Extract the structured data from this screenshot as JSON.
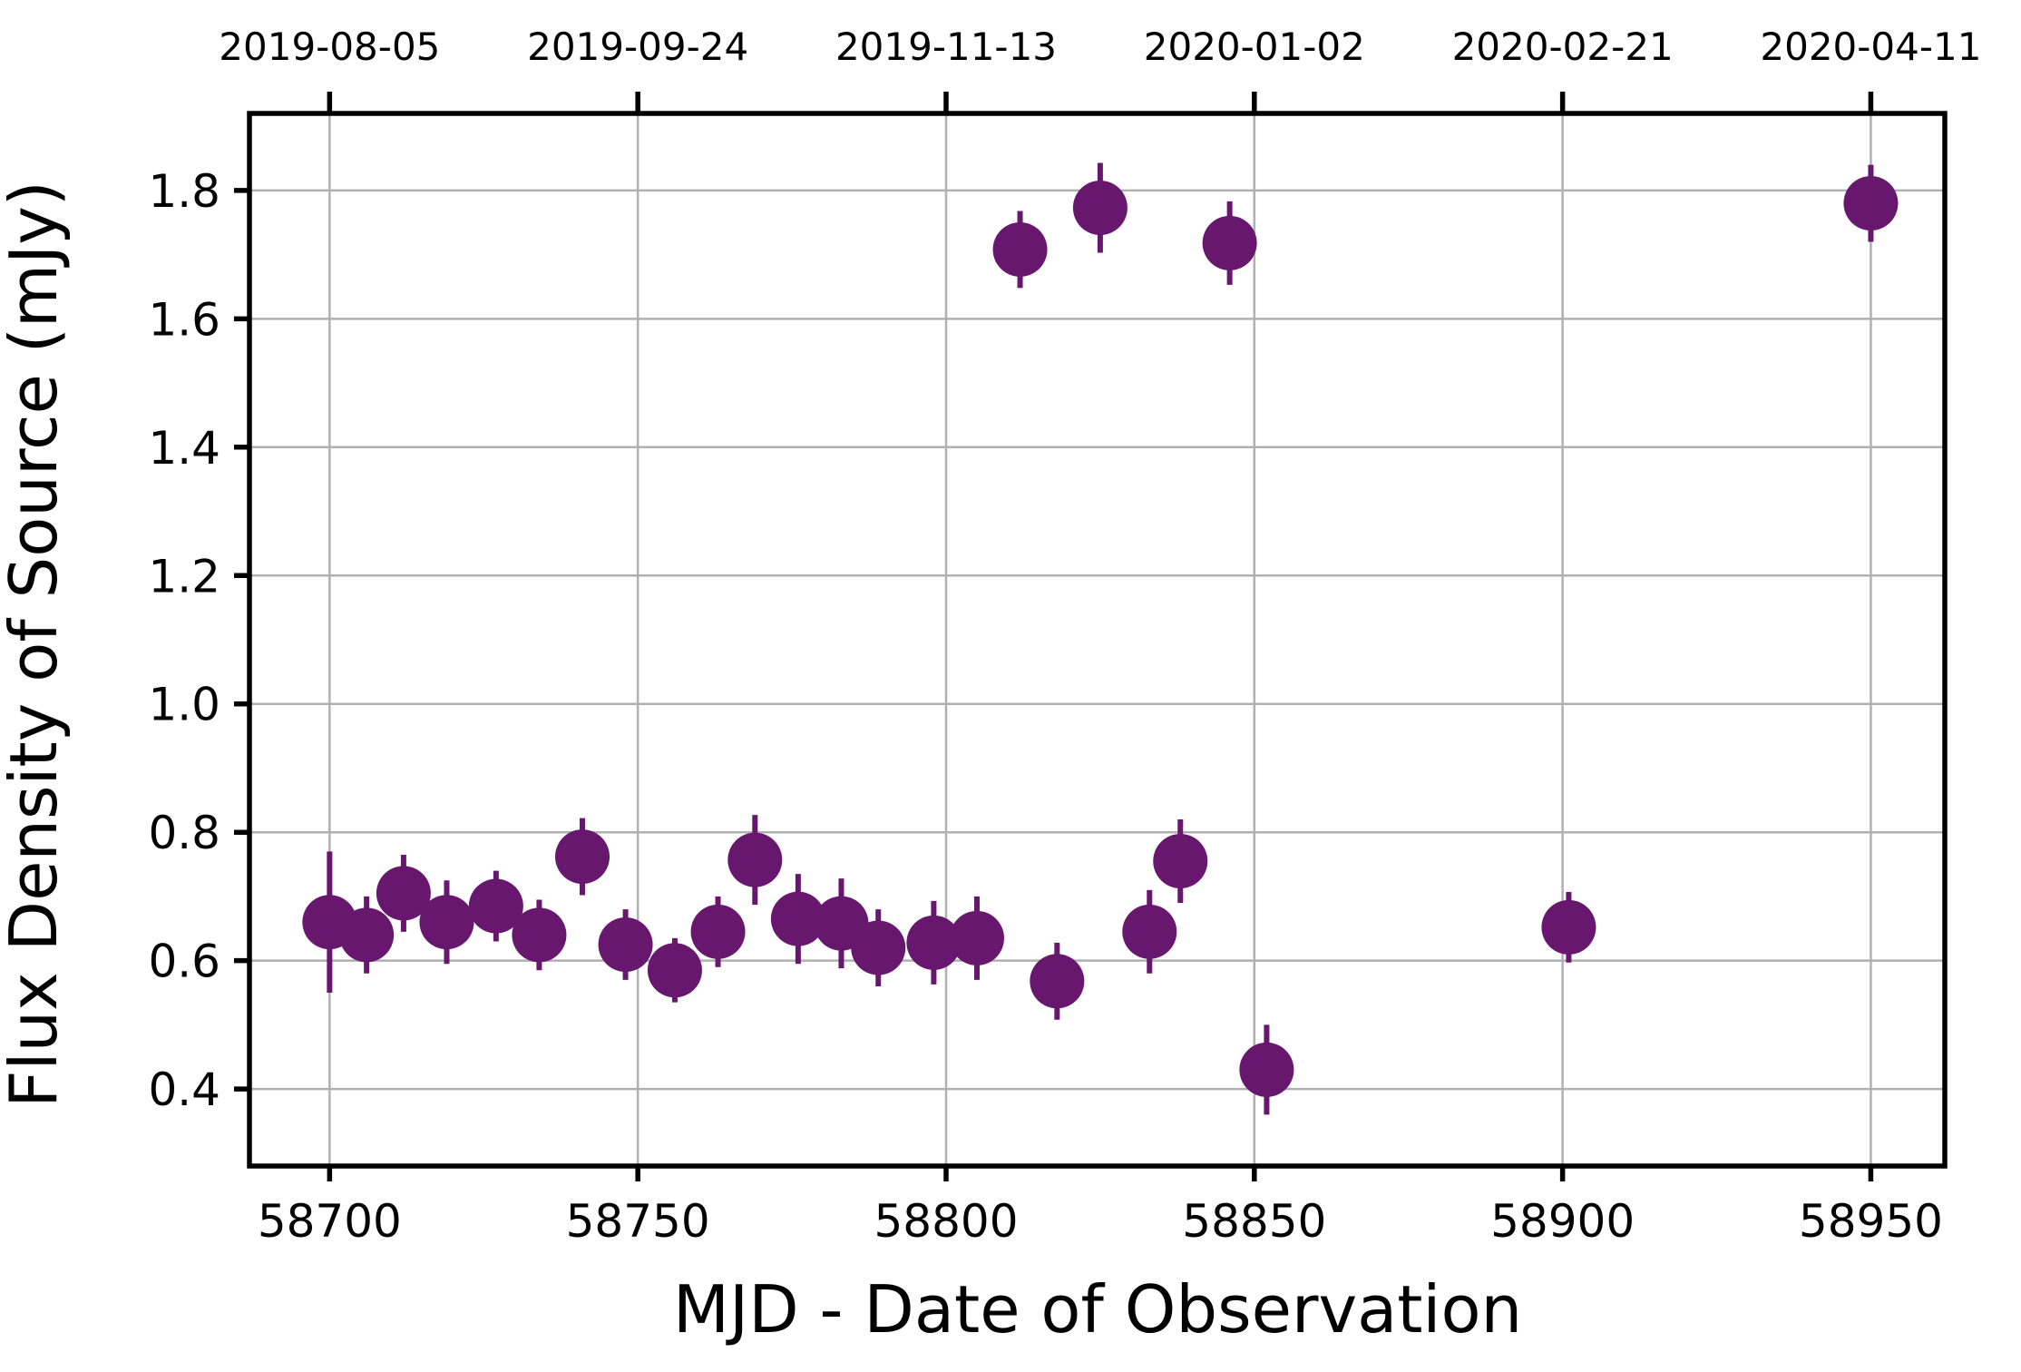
{
  "chart_data": {
    "type": "scatter",
    "title": "",
    "xlabel": "MJD - Date of Observation",
    "ylabel": "Flux Density of Source (mJy)",
    "xlim": [
      58687,
      58962
    ],
    "ylim": [
      0.28,
      1.92
    ],
    "x_ticks": [
      58700,
      58750,
      58800,
      58850,
      58900,
      58950
    ],
    "y_ticks": [
      0.4,
      0.6,
      0.8,
      1.0,
      1.2,
      1.4,
      1.6,
      1.8
    ],
    "x_tick_labels": [
      "58700",
      "58750",
      "58800",
      "58850",
      "58900",
      "58950"
    ],
    "y_tick_labels": [
      "0.4",
      "0.6",
      "0.8",
      "1.0",
      "1.2",
      "1.4",
      "1.6",
      "1.8"
    ],
    "top_axis": {
      "tick_values": [
        58700,
        58750,
        58800,
        58850,
        58900,
        58950
      ],
      "tick_labels": [
        "2019-08-05",
        "2019-09-24",
        "2019-11-13",
        "2020-01-02",
        "2020-02-21",
        "2020-04-11"
      ]
    },
    "grid": true,
    "legend": "none",
    "marker_color": "#67176d",
    "series": [
      {
        "x": [
          58700,
          58706,
          58712,
          58719,
          58727,
          58734,
          58741,
          58748,
          58756,
          58763,
          58769,
          58776,
          58783,
          58789,
          58798,
          58805,
          58812,
          58818,
          58825,
          58833,
          58838,
          58846,
          58852,
          58901,
          58950
        ],
        "y": [
          0.66,
          0.64,
          0.705,
          0.66,
          0.685,
          0.64,
          0.762,
          0.625,
          0.585,
          0.645,
          0.757,
          0.665,
          0.658,
          0.62,
          0.628,
          0.635,
          1.708,
          0.568,
          1.773,
          0.645,
          0.755,
          1.718,
          0.43,
          0.652,
          1.78
        ],
        "yerr": [
          0.11,
          0.06,
          0.06,
          0.065,
          0.055,
          0.055,
          0.06,
          0.055,
          0.05,
          0.055,
          0.07,
          0.07,
          0.07,
          0.06,
          0.065,
          0.065,
          0.06,
          0.06,
          0.07,
          0.065,
          0.065,
          0.065,
          0.07,
          0.055,
          0.06
        ]
      }
    ]
  }
}
